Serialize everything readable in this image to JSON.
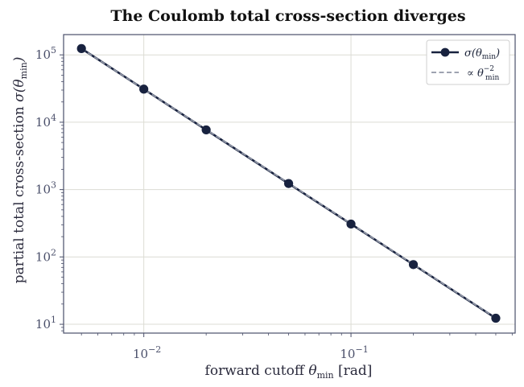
{
  "chart_data": {
    "type": "line",
    "title": "The Coulomb total cross-section diverges",
    "xlabel": {
      "main": "forward cutoff  ",
      "theta": "θ",
      "sub": "min",
      "unit": "   [rad]"
    },
    "ylabel": {
      "main": "partial total cross-section  ",
      "sigma": "σ(",
      "theta": "θ",
      "sub": "min",
      "close": ")"
    },
    "xscale": "log",
    "yscale": "log",
    "xlim": [
      0.0041,
      0.62
    ],
    "ylim": [
      7.4,
      200000
    ],
    "grid": true,
    "legend_position": "top-right",
    "x_ticks": [
      {
        "value": 0.01,
        "base": "10",
        "exp": "−2"
      },
      {
        "value": 0.1,
        "base": "10",
        "exp": "−1"
      }
    ],
    "y_ticks": [
      {
        "value": 10,
        "base": "10",
        "exp": "1"
      },
      {
        "value": 100,
        "base": "10",
        "exp": "2"
      },
      {
        "value": 1000,
        "base": "10",
        "exp": "3"
      },
      {
        "value": 10000,
        "base": "10",
        "exp": "4"
      },
      {
        "value": 100000,
        "base": "10",
        "exp": "5"
      }
    ],
    "series": [
      {
        "name": {
          "pre": "σ(",
          "theta": "θ",
          "sub": "min",
          "post": ")"
        },
        "style": "solid-markers",
        "color": "#18223f",
        "x": [
          0.005,
          0.01,
          0.02,
          0.05,
          0.1,
          0.2,
          0.5
        ],
        "y": [
          124000,
          31000,
          7700,
          1230,
          308,
          77,
          12.3
        ]
      },
      {
        "name": {
          "pre": "∝ ",
          "theta": "θ",
          "sub": "min",
          "sup": "−2"
        },
        "style": "dashed",
        "color": "#9096a6",
        "x": [
          0.005,
          0.5
        ],
        "y": [
          124000,
          12.4
        ]
      }
    ],
    "colors": {
      "axis": "#4a4f6a",
      "grid": "#dcdcd4",
      "primary": "#18223f",
      "reference": "#9096a6"
    }
  }
}
